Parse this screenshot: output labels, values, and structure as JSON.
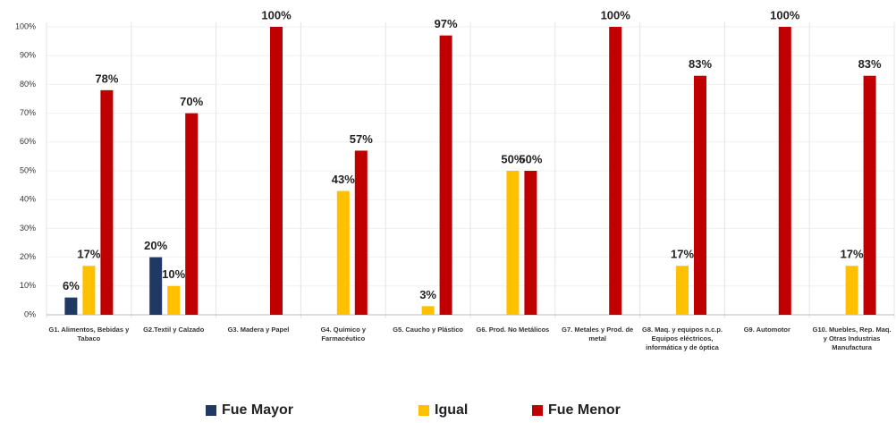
{
  "chart_data": {
    "type": "bar",
    "categories": [
      "G1. Alimentos, Bebidas y Tabaco",
      "G2.Textil y Calzado",
      "G3. Madera y Papel",
      "G4. Químico y Farmacéutico",
      "G5. Caucho y Plástico",
      "G6. Prod. No Metálicos",
      "G7. Metales y Prod. de metal",
      "G8. Maq. y equipos n.c.p. Equipos eléctricos, informática y de óptica",
      "G9. Automotor",
      "G10. Muebles, Rep. Maq. y Otras Industrias Manufactura"
    ],
    "series": [
      {
        "name": "Fue Mayor",
        "color": "#1f3864",
        "values": [
          6,
          20,
          null,
          null,
          null,
          null,
          null,
          null,
          null,
          null
        ],
        "value_labels": [
          "6%",
          "20%",
          null,
          null,
          null,
          null,
          null,
          null,
          null,
          null
        ]
      },
      {
        "name": "Igual",
        "color": "#ffc000",
        "values": [
          17,
          10,
          null,
          43,
          3,
          50,
          null,
          17,
          null,
          17
        ],
        "value_labels": [
          "17%",
          "10%",
          null,
          "43%",
          "3%",
          "50%",
          null,
          "17%",
          null,
          "17%"
        ]
      },
      {
        "name": "Fue Menor",
        "color": "#c00000",
        "values": [
          78,
          70,
          100,
          57,
          97,
          50,
          100,
          83,
          100,
          83
        ],
        "value_labels": [
          "78%",
          "70%",
          "100%",
          "57%",
          "97%",
          "50%",
          "100%",
          "83%",
          "100%",
          "83%"
        ]
      }
    ],
    "ylim": [
      0,
      100
    ],
    "yticks": [
      {
        "value": 0,
        "label": "0%"
      },
      {
        "value": 10,
        "label": "10%"
      },
      {
        "value": 20,
        "label": "20%"
      },
      {
        "value": 30,
        "label": "30%"
      },
      {
        "value": 40,
        "label": "40%"
      },
      {
        "value": 50,
        "label": "50%"
      },
      {
        "value": 60,
        "label": "60%"
      },
      {
        "value": 70,
        "label": "70%"
      },
      {
        "value": 80,
        "label": "80%"
      },
      {
        "value": 90,
        "label": "90%"
      },
      {
        "value": 100,
        "label": "100%"
      }
    ]
  }
}
